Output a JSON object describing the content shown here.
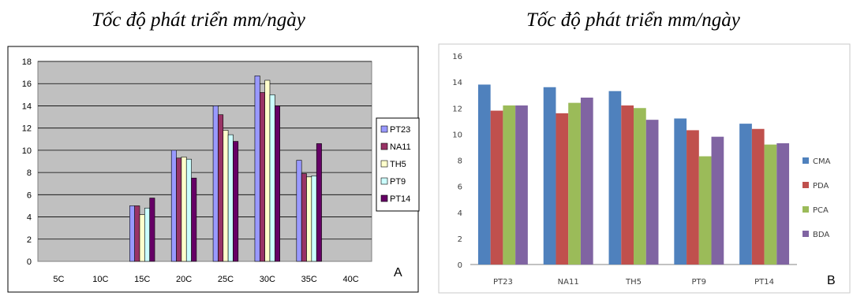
{
  "chart_data": [
    {
      "type": "bar",
      "title": "Tốc độ phát triển mm/ngày",
      "panel_label": "A",
      "categories": [
        "5C",
        "10C",
        "15C",
        "20C",
        "25C",
        "30C",
        "35C",
        "40C"
      ],
      "series": [
        {
          "name": "PT23",
          "color": "#9999ff",
          "values": [
            0,
            0,
            5.0,
            10.0,
            14.0,
            16.7,
            9.1,
            0
          ]
        },
        {
          "name": "NA11",
          "color": "#993366",
          "values": [
            0,
            0,
            5.0,
            9.3,
            13.2,
            15.2,
            7.9,
            0
          ]
        },
        {
          "name": "TH5",
          "color": "#ffffcc",
          "values": [
            0,
            0,
            4.2,
            9.4,
            11.8,
            16.3,
            7.6,
            0
          ]
        },
        {
          "name": "PT9",
          "color": "#ccffff",
          "values": [
            0,
            0,
            4.8,
            9.2,
            11.4,
            15.0,
            7.7,
            0
          ]
        },
        {
          "name": "PT14",
          "color": "#660066",
          "values": [
            0,
            0,
            5.7,
            7.5,
            10.8,
            14.0,
            10.6,
            0
          ]
        }
      ],
      "yticks": [
        "0",
        "2",
        "4",
        "6",
        "8",
        "10",
        "12",
        "14",
        "16",
        "18"
      ],
      "ylim": [
        0,
        18
      ],
      "grid": true,
      "legend": "right"
    },
    {
      "type": "bar",
      "title": "Tốc độ phát triển mm/ngày",
      "panel_label": "B",
      "categories": [
        "PT23",
        "NA11",
        "TH5",
        "PT9",
        "PT14"
      ],
      "series": [
        {
          "name": "CMA",
          "color": "#4f81bd",
          "values": [
            13.8,
            13.6,
            13.3,
            11.2,
            10.8
          ]
        },
        {
          "name": "PDA",
          "color": "#c0504d",
          "values": [
            11.8,
            11.6,
            12.2,
            10.3,
            10.4
          ]
        },
        {
          "name": "PCA",
          "color": "#9bbb59",
          "values": [
            12.2,
            12.4,
            12.0,
            8.3,
            9.2
          ]
        },
        {
          "name": "BDA",
          "color": "#8064a2",
          "values": [
            12.2,
            12.8,
            11.1,
            9.8,
            9.3
          ]
        }
      ],
      "yticks": [
        "0",
        "2",
        "4",
        "6",
        "8",
        "10",
        "12",
        "14",
        "16"
      ],
      "ylim": [
        0,
        16
      ],
      "grid": false,
      "legend": "right"
    }
  ]
}
